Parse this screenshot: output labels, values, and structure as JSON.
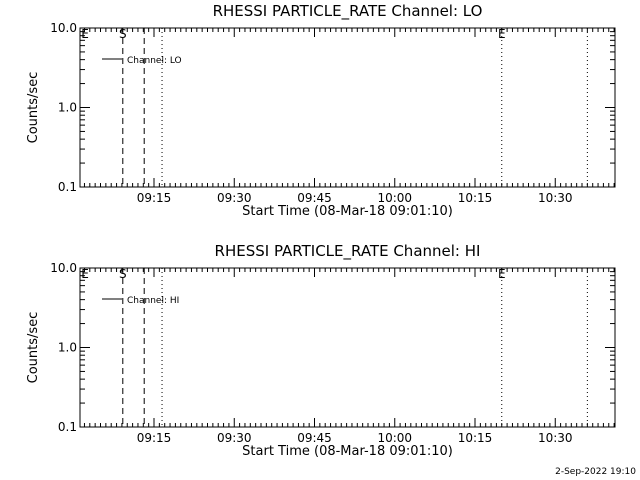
{
  "footer": {
    "timestamp": "2-Sep-2022 19:10"
  },
  "chart_data": [
    {
      "type": "line",
      "title": "RHESSI PARTICLE_RATE Channel: LO",
      "xlabel": "Start Time (08-Mar-18 09:01:10)",
      "ylabel": "Counts/sec",
      "y_scale": "log",
      "ylim": [
        0.1,
        10.0
      ],
      "y_ticks": [
        "0.1",
        "1.0",
        "10.0"
      ],
      "xlim": [
        "09:01:10",
        "10:41:10"
      ],
      "x_ticks": [
        "09:15",
        "09:30",
        "09:45",
        "10:00",
        "10:15",
        "10:30"
      ],
      "grid": false,
      "legend": {
        "position": "top-left",
        "entries": [
          "Channel: LO"
        ]
      },
      "series": [
        {
          "name": "Channel: LO",
          "x": [],
          "y": []
        }
      ],
      "vertical_markers": [
        {
          "time": "09:09:10",
          "style": "dashed",
          "label": "S"
        },
        {
          "time": "09:13:10",
          "style": "dashed",
          "label": ""
        },
        {
          "time": "09:16:30",
          "style": "dotted",
          "label": ""
        },
        {
          "time": "10:20:00",
          "style": "dotted",
          "label": "E"
        },
        {
          "time": "10:36:00",
          "style": "dotted",
          "label": ""
        }
      ],
      "edge_label": "E"
    },
    {
      "type": "line",
      "title": "RHESSI PARTICLE_RATE Channel: HI",
      "xlabel": "Start Time (08-Mar-18 09:01:10)",
      "ylabel": "Counts/sec",
      "y_scale": "log",
      "ylim": [
        0.1,
        10.0
      ],
      "y_ticks": [
        "0.1",
        "1.0",
        "10.0"
      ],
      "xlim": [
        "09:01:10",
        "10:41:10"
      ],
      "x_ticks": [
        "09:15",
        "09:30",
        "09:45",
        "10:00",
        "10:15",
        "10:30"
      ],
      "grid": false,
      "legend": {
        "position": "top-left",
        "entries": [
          "Channel: HI"
        ]
      },
      "series": [
        {
          "name": "Channel: HI",
          "x": [],
          "y": []
        }
      ],
      "vertical_markers": [
        {
          "time": "09:09:10",
          "style": "dashed",
          "label": "S"
        },
        {
          "time": "09:13:10",
          "style": "dashed",
          "label": ""
        },
        {
          "time": "09:16:30",
          "style": "dotted",
          "label": ""
        },
        {
          "time": "10:20:00",
          "style": "dotted",
          "label": "E"
        },
        {
          "time": "10:36:00",
          "style": "dotted",
          "label": ""
        }
      ],
      "edge_label": "E"
    }
  ]
}
